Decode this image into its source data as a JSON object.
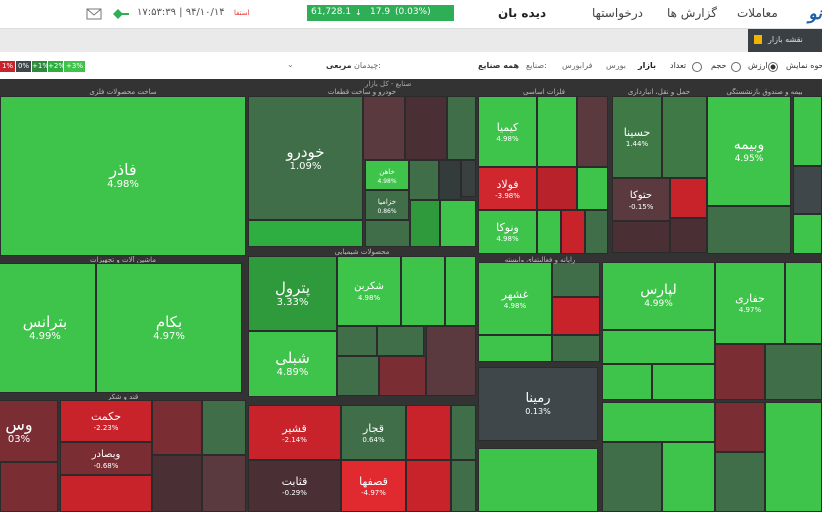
{
  "nav": {
    "logo": "نو",
    "items": [
      "معاملات",
      "گزارش ها",
      "درخواستها",
      "دیده بان"
    ]
  },
  "index": {
    "value": "61,728.1",
    "change": "17.9",
    "percent": "(0.03%)"
  },
  "clock": "۱۷:۵۳:۳۹ | ۹۴/۱۰/۱۴",
  "exit": "استفا",
  "tab": "نقشه بازار",
  "toolbar": {
    "mode_label": "نحوه نمایش:",
    "modes": [
      "ارزش",
      "حجم",
      "تعداد"
    ],
    "markets": [
      "بازار",
      "بورس",
      "فرابورس"
    ],
    "industry_label": "صنایع:",
    "industry": "همه صنایع",
    "layout_label": "چیدمان:",
    "layout": "مربعی"
  },
  "legend": [
    "1%",
    "0%",
    "+1%",
    "+2%",
    "+3%"
  ],
  "map_title": "صنایع - کل بازار",
  "sectors": [
    "ساخت محصولات فلزی",
    "خودرو و ساخت قطعات",
    "فلزات اساسی",
    "حمل و نقل، انبارداری",
    "بیمه و صندوق بازنشستگی",
    "ماشین آلات و تجهیزات",
    "محصولات شیمیایی",
    "رایانه و فعالیتهای وابسته",
    "قند و شکر"
  ],
  "tiles": [
    {
      "symbol": "فاذر",
      "change": "4.98%",
      "color": "#3ec44a"
    },
    {
      "symbol": "خودرو",
      "change": "1.09%",
      "color": "#3f6e48"
    },
    {
      "symbol": "خاهن",
      "change": "4.98%",
      "color": "#3ec44a"
    },
    {
      "symbol": "خزامیا",
      "change": "0.86%",
      "color": "#3f6e48"
    },
    {
      "symbol": "کیمیا",
      "change": "4.98%",
      "color": "#3ec44a"
    },
    {
      "symbol": "فولاد",
      "change": "-3.98%",
      "color": "#d0262d"
    },
    {
      "symbol": "ونوکا",
      "change": "4.98%",
      "color": "#3ec44a"
    },
    {
      "symbol": "حسینا",
      "change": "1.44%",
      "color": "#3f7a46"
    },
    {
      "symbol": "حتوکا",
      "change": "-0.15%",
      "color": "#5a3a3e"
    },
    {
      "symbol": "وبیمه",
      "change": "4.95%",
      "color": "#3ec44a"
    },
    {
      "symbol": "بترانس",
      "change": "4.99%",
      "color": "#3ec44a"
    },
    {
      "symbol": "بکام",
      "change": "4.97%",
      "color": "#3ec44a"
    },
    {
      "symbol": "پترول",
      "change": "3.33%",
      "color": "#2e9a3c"
    },
    {
      "symbol": "شبلی",
      "change": "4.89%",
      "color": "#3ec44a"
    },
    {
      "symbol": "شکربن",
      "change": "4.98%",
      "color": "#3ec44a"
    },
    {
      "symbol": "غشهر",
      "change": "4.98%",
      "color": "#3ec44a"
    },
    {
      "symbol": "لپارس",
      "change": "4.99%",
      "color": "#3ec44a"
    },
    {
      "symbol": "حفاری",
      "change": "4.97%",
      "color": "#3ec44a"
    },
    {
      "symbol": "رمینا",
      "change": "0.13%",
      "color": "#40474a"
    },
    {
      "symbol": "حکمت",
      "change": "-2.23%",
      "color": "#c8232b"
    },
    {
      "symbol": "وبصادر",
      "change": "-0.68%",
      "color": "#7a2d33"
    },
    {
      "symbol": "وس",
      "change": "03%",
      "color": "#7a2d33"
    },
    {
      "symbol": "قشیر",
      "change": "-2.14%",
      "color": "#c8232b"
    },
    {
      "symbol": "قثابت",
      "change": "-0.29%",
      "color": "#4a3035"
    },
    {
      "symbol": "قجار",
      "change": "0.64%",
      "color": "#3f6e48"
    },
    {
      "symbol": "قصفها",
      "change": "-4.97%",
      "color": "#e02a30"
    }
  ]
}
